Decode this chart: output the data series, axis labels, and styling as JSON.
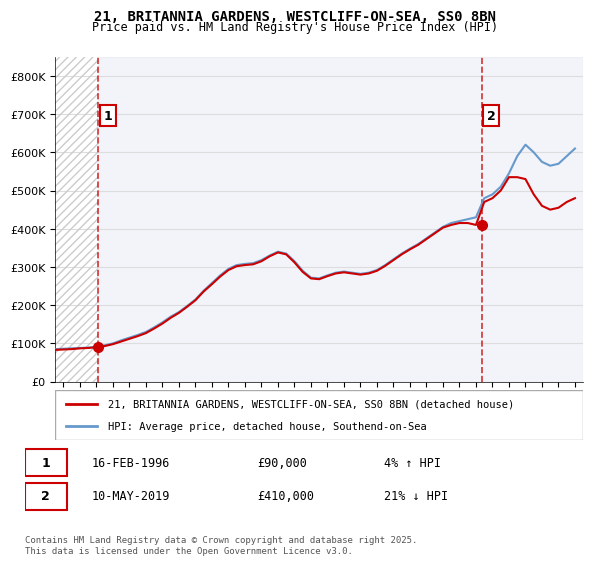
{
  "title1": "21, BRITANNIA GARDENS, WESTCLIFF-ON-SEA, SS0 8BN",
  "title2": "Price paid vs. HM Land Registry's House Price Index (HPI)",
  "xlabel": "",
  "ylabel": "",
  "ylim": [
    0,
    850000
  ],
  "yticks": [
    0,
    100000,
    200000,
    300000,
    400000,
    500000,
    600000,
    700000,
    800000
  ],
  "ytick_labels": [
    "£0",
    "£100K",
    "£200K",
    "£300K",
    "£400K",
    "£500K",
    "£600K",
    "£700K",
    "£800K"
  ],
  "sale1_year": 1996.12,
  "sale1_price": 90000,
  "sale1_label": "1",
  "sale1_date": "16-FEB-1996",
  "sale1_pct": "4% ↑ HPI",
  "sale2_year": 2019.36,
  "sale2_price": 410000,
  "sale2_label": "2",
  "sale2_date": "10-MAY-2019",
  "sale2_pct": "21% ↓ HPI",
  "line_color_red": "#cc0000",
  "line_color_blue": "#6699cc",
  "hatch_color": "#bbbbbb",
  "bg_color": "#e8f0f8",
  "legend_label_red": "21, BRITANNIA GARDENS, WESTCLIFF-ON-SEA, SS0 8BN (detached house)",
  "legend_label_blue": "HPI: Average price, detached house, Southend-on-Sea",
  "footer": "Contains HM Land Registry data © Crown copyright and database right 2025.\nThis data is licensed under the Open Government Licence v3.0.",
  "xmin": 1993.5,
  "xmax": 2025.5,
  "hpi_data_x": [
    1993.5,
    1994.0,
    1994.5,
    1995.0,
    1995.5,
    1996.0,
    1996.5,
    1997.0,
    1997.5,
    1998.0,
    1998.5,
    1999.0,
    1999.5,
    2000.0,
    2000.5,
    2001.0,
    2001.5,
    2002.0,
    2002.5,
    2003.0,
    2003.5,
    2004.0,
    2004.5,
    2005.0,
    2005.5,
    2006.0,
    2006.5,
    2007.0,
    2007.5,
    2008.0,
    2008.5,
    2009.0,
    2009.5,
    2010.0,
    2010.5,
    2011.0,
    2011.5,
    2012.0,
    2012.5,
    2013.0,
    2013.5,
    2014.0,
    2014.5,
    2015.0,
    2015.5,
    2016.0,
    2016.5,
    2017.0,
    2017.5,
    2018.0,
    2018.5,
    2019.0,
    2019.5,
    2020.0,
    2020.5,
    2021.0,
    2021.5,
    2022.0,
    2022.5,
    2023.0,
    2023.5,
    2024.0,
    2024.5,
    2025.0
  ],
  "hpi_data_y": [
    85000,
    86000,
    87000,
    88000,
    89000,
    91000,
    95000,
    100000,
    108000,
    115000,
    122000,
    130000,
    142000,
    155000,
    170000,
    182000,
    198000,
    215000,
    238000,
    258000,
    278000,
    295000,
    305000,
    308000,
    310000,
    318000,
    330000,
    340000,
    335000,
    315000,
    290000,
    272000,
    270000,
    278000,
    285000,
    288000,
    285000,
    282000,
    285000,
    292000,
    305000,
    320000,
    335000,
    348000,
    360000,
    375000,
    390000,
    405000,
    415000,
    420000,
    425000,
    430000,
    480000,
    490000,
    510000,
    545000,
    590000,
    620000,
    600000,
    575000,
    565000,
    570000,
    590000,
    610000
  ],
  "red_data_x": [
    1993.5,
    1994.0,
    1994.5,
    1995.0,
    1995.5,
    1996.0,
    1996.5,
    1997.0,
    1997.5,
    1998.0,
    1998.5,
    1999.0,
    1999.5,
    2000.0,
    2000.5,
    2001.0,
    2001.5,
    2002.0,
    2002.5,
    2003.0,
    2003.5,
    2004.0,
    2004.5,
    2005.0,
    2005.5,
    2006.0,
    2006.5,
    2007.0,
    2007.5,
    2008.0,
    2008.5,
    2009.0,
    2009.5,
    2010.0,
    2010.5,
    2011.0,
    2011.5,
    2012.0,
    2012.5,
    2013.0,
    2013.5,
    2014.0,
    2014.5,
    2015.0,
    2015.5,
    2016.0,
    2016.5,
    2017.0,
    2017.5,
    2018.0,
    2018.5,
    2019.0,
    2019.5,
    2020.0,
    2020.5,
    2021.0,
    2021.5,
    2022.0,
    2022.5,
    2023.0,
    2023.5,
    2024.0,
    2024.5,
    2025.0
  ],
  "red_data_y": [
    83000,
    84000,
    85000,
    87000,
    88000,
    90000,
    93000,
    98000,
    105000,
    112000,
    119000,
    127000,
    139000,
    152000,
    167000,
    180000,
    196000,
    213000,
    236000,
    255000,
    275000,
    292000,
    302000,
    305000,
    307000,
    315000,
    328000,
    338000,
    333000,
    312000,
    287000,
    270000,
    268000,
    276000,
    283000,
    286000,
    283000,
    280000,
    283000,
    290000,
    303000,
    318000,
    333000,
    346000,
    358000,
    373000,
    388000,
    403000,
    410000,
    415000,
    415000,
    410000,
    470000,
    480000,
    500000,
    535000,
    535000,
    530000,
    490000,
    460000,
    450000,
    455000,
    470000,
    480000
  ]
}
